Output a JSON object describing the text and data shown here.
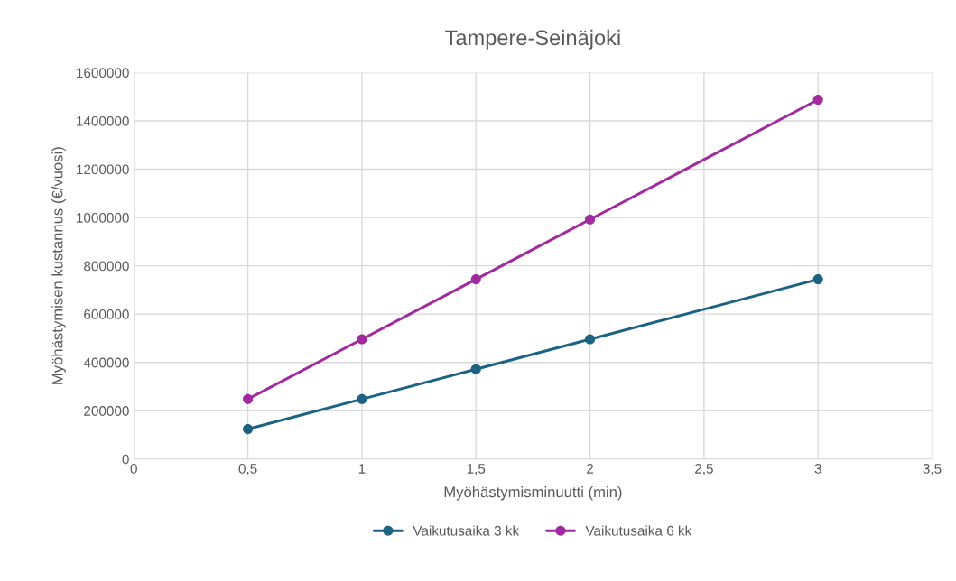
{
  "chart_data": {
    "type": "line",
    "title": "Tampere-Seinäjoki",
    "xlabel": "Myöhästymisminuutti (min)",
    "ylabel": "Myöhästymisen kustannus (€/vuosi)",
    "x": [
      0.5,
      1,
      1.5,
      2,
      3
    ],
    "series": [
      {
        "name": "Vaikutusaika 3 kk",
        "color": "#1b6283",
        "values": [
          124000,
          248000,
          372000,
          496000,
          744000
        ]
      },
      {
        "name": "Vaikutusaika 6 kk",
        "color": "#a12b9e",
        "values": [
          248000,
          496000,
          744000,
          992000,
          1488000
        ]
      }
    ],
    "xlim": [
      0,
      3.5
    ],
    "xticks": [
      0,
      {
        "value": 0.5,
        "label": "0,5"
      },
      1,
      {
        "value": 1.5,
        "label": "1,5"
      },
      2,
      {
        "value": 2.5,
        "label": "2,5"
      },
      3,
      {
        "value": 3.5,
        "label": "3,5"
      }
    ],
    "ylim": [
      0,
      1600000
    ],
    "yticks": [
      0,
      200000,
      400000,
      600000,
      800000,
      1000000,
      1200000,
      1400000,
      1600000
    ],
    "grid": true,
    "legend": "bottom",
    "marker": "circle",
    "line_style": "solid"
  }
}
